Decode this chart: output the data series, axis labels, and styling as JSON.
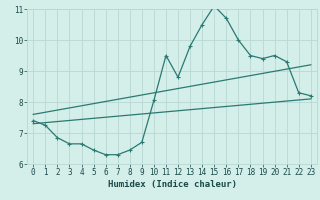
{
  "xlabel": "Humidex (Indice chaleur)",
  "xlim": [
    -0.5,
    23.5
  ],
  "ylim": [
    6,
    11
  ],
  "yticks": [
    6,
    7,
    8,
    9,
    10,
    11
  ],
  "xticks": [
    0,
    1,
    2,
    3,
    4,
    5,
    6,
    7,
    8,
    9,
    10,
    11,
    12,
    13,
    14,
    15,
    16,
    17,
    18,
    19,
    20,
    21,
    22,
    23
  ],
  "bg_color": "#d4eeea",
  "line_color": "#2a7a72",
  "grid_color": "#b8d8d4",
  "main_line_x": [
    0,
    1,
    2,
    3,
    4,
    5,
    6,
    7,
    8,
    9,
    10,
    11,
    12,
    13,
    14,
    15,
    16,
    17,
    18,
    19,
    20,
    21,
    22,
    23
  ],
  "main_line_y": [
    7.4,
    7.25,
    6.85,
    6.65,
    6.65,
    6.45,
    6.3,
    6.3,
    6.45,
    6.7,
    8.05,
    9.5,
    8.8,
    9.8,
    10.5,
    11.1,
    10.7,
    10.0,
    9.5,
    9.4,
    9.5,
    9.3,
    8.3,
    8.2
  ],
  "upper_trend_x": [
    0,
    23
  ],
  "upper_trend_y": [
    7.6,
    9.2
  ],
  "lower_trend_x": [
    0,
    23
  ],
  "lower_trend_y": [
    7.3,
    8.1
  ]
}
